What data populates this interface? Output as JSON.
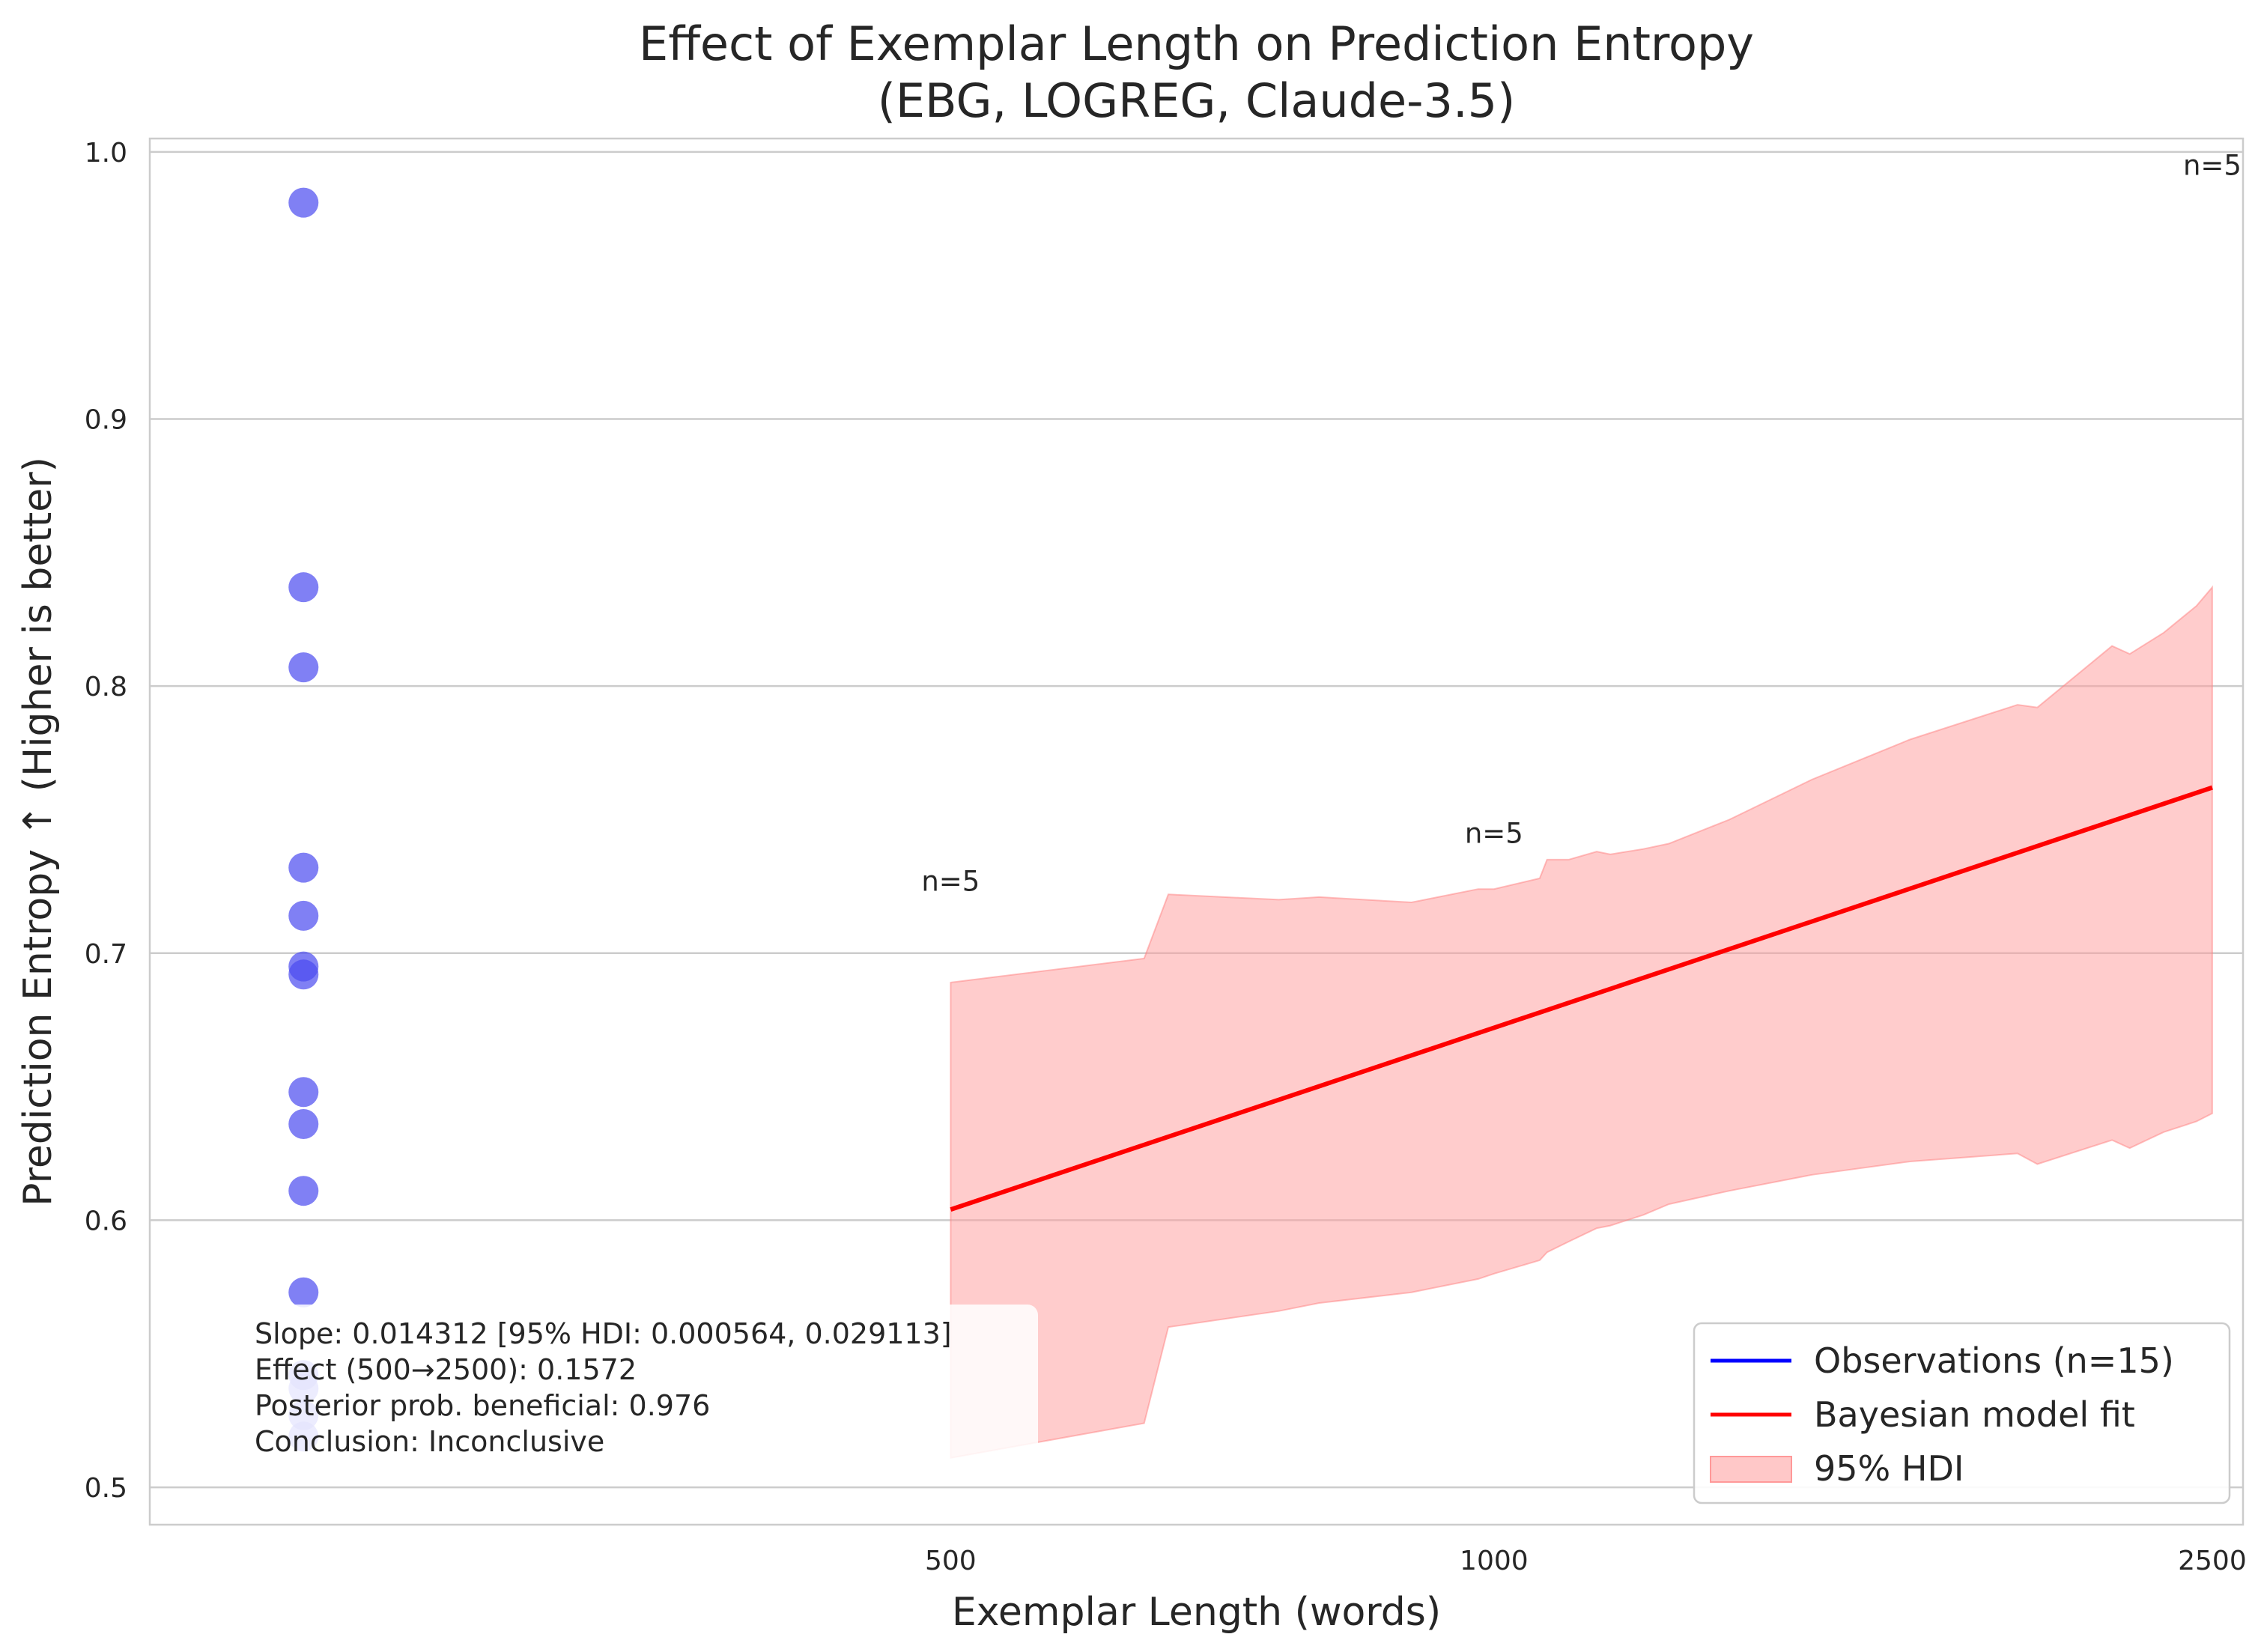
{
  "chart_data": {
    "type": "scatter",
    "title": [
      "Effect of Exemplar Length on Prediction Entropy",
      "(EBG, LOGREG, Claude-3.5)"
    ],
    "xlabel": "Exemplar Length (words)",
    "ylabel": "Prediction Entropy ↑ (Higher is better)",
    "x_scale": "log",
    "xlim": [
      180,
      2600
    ],
    "ylim": [
      0.486,
      1.005
    ],
    "x_ticks": [
      {
        "value": 500,
        "label": "500"
      },
      {
        "value": 1000,
        "label": "1000"
      },
      {
        "value": 2500,
        "label": "2500"
      }
    ],
    "y_ticks": [
      {
        "value": 0.5,
        "label": "0.5"
      },
      {
        "value": 0.6,
        "label": "0.6"
      },
      {
        "value": 0.7,
        "label": "0.7"
      },
      {
        "value": 0.8,
        "label": "0.8"
      },
      {
        "value": 0.9,
        "label": "0.9"
      },
      {
        "value": 1.0,
        "label": "1.0"
      }
    ],
    "grid": "horizontal",
    "observations": {
      "name": "Observations (n=15)",
      "color": "#4a4af0",
      "x": 219,
      "y": [
        0.981,
        0.837,
        0.807,
        0.732,
        0.714,
        0.695,
        0.692,
        0.648,
        0.636,
        0.611,
        0.573,
        0.542,
        0.537,
        0.527,
        0.519
      ]
    },
    "fit": {
      "name": "Bayesian model fit",
      "color": "#ff0000",
      "x": [
        500,
        2500
      ],
      "y": [
        0.604,
        0.762
      ]
    },
    "hdi": {
      "name": "95% HDI",
      "color": "#ffb3b3",
      "x": [
        500,
        640,
        660,
        760,
        800,
        900,
        980,
        1000,
        1060,
        1070,
        1100,
        1140,
        1160,
        1210,
        1250,
        1350,
        1500,
        1700,
        1950,
        2000,
        2200,
        2250,
        2350,
        2450,
        2500
      ],
      "upper": [
        0.689,
        0.698,
        0.722,
        0.72,
        0.721,
        0.719,
        0.724,
        0.724,
        0.728,
        0.735,
        0.735,
        0.738,
        0.737,
        0.739,
        0.741,
        0.75,
        0.765,
        0.78,
        0.793,
        0.792,
        0.815,
        0.812,
        0.82,
        0.83,
        0.837
      ],
      "lower": [
        0.511,
        0.524,
        0.56,
        0.566,
        0.569,
        0.573,
        0.578,
        0.58,
        0.585,
        0.588,
        0.592,
        0.597,
        0.598,
        0.602,
        0.606,
        0.611,
        0.617,
        0.622,
        0.625,
        0.621,
        0.63,
        0.627,
        0.633,
        0.637,
        0.64
      ]
    },
    "n_annotations": [
      {
        "x": 500,
        "y": 0.727,
        "label": "n=5"
      },
      {
        "x": 1000,
        "y": 0.745,
        "label": "n=5"
      },
      {
        "x": 2500,
        "y": 0.995,
        "label": "n=5"
      }
    ],
    "stats": [
      "Slope: 0.014312 [95% HDI: 0.000564, 0.029113]",
      "Effect (500→2500): 0.1572",
      "Posterior prob. beneficial: 0.976",
      "Conclusion: Inconclusive"
    ],
    "legend": {
      "position": "lower-right",
      "entries": [
        {
          "label": "Observations (n=15)",
          "color": "#0000ff",
          "kind": "line"
        },
        {
          "label": "Bayesian model fit",
          "color": "#ff0000",
          "kind": "line"
        },
        {
          "label": "95% HDI",
          "color": "#ffc8c8",
          "kind": "patch"
        }
      ]
    }
  }
}
